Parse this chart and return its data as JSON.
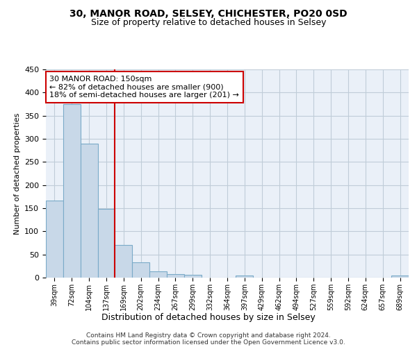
{
  "title": "30, MANOR ROAD, SELSEY, CHICHESTER, PO20 0SD",
  "subtitle": "Size of property relative to detached houses in Selsey",
  "xlabel": "Distribution of detached houses by size in Selsey",
  "ylabel": "Number of detached properties",
  "footer_line1": "Contains HM Land Registry data © Crown copyright and database right 2024.",
  "footer_line2": "Contains public sector information licensed under the Open Government Licence v3.0.",
  "annotation_line1": "30 MANOR ROAD: 150sqm",
  "annotation_line2": "← 82% of detached houses are smaller (900)",
  "annotation_line3": "18% of semi-detached houses are larger (201) →",
  "bar_color": "#c8d8e8",
  "bar_edge_color": "#7aaac8",
  "vline_color": "#cc0000",
  "annotation_box_color": "#cc0000",
  "bg_color": "#eaf0f8",
  "grid_color": "#c0ccd8",
  "ylim": [
    0,
    450
  ],
  "yticks": [
    0,
    50,
    100,
    150,
    200,
    250,
    300,
    350,
    400,
    450
  ],
  "bin_labels": [
    "39sqm",
    "72sqm",
    "104sqm",
    "137sqm",
    "169sqm",
    "202sqm",
    "234sqm",
    "267sqm",
    "299sqm",
    "332sqm",
    "364sqm",
    "397sqm",
    "429sqm",
    "462sqm",
    "494sqm",
    "527sqm",
    "559sqm",
    "592sqm",
    "624sqm",
    "657sqm",
    "689sqm"
  ],
  "bar_heights": [
    166,
    375,
    290,
    148,
    70,
    33,
    13,
    7,
    6,
    0,
    0,
    4,
    0,
    0,
    0,
    0,
    0,
    0,
    0,
    0,
    4
  ],
  "vline_x_index": 3.5,
  "property_size": "150sqm",
  "title_fontsize": 10,
  "subtitle_fontsize": 9,
  "ylabel_fontsize": 8,
  "xlabel_fontsize": 9,
  "tick_fontsize": 8,
  "xtick_fontsize": 7,
  "footer_fontsize": 6.5,
  "annot_fontsize": 8
}
